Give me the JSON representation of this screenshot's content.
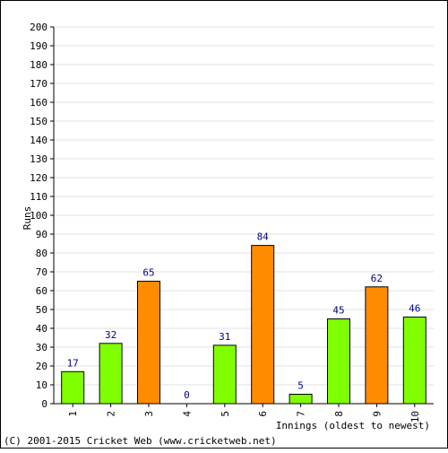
{
  "chart_data": {
    "type": "bar",
    "ylabel": "Runs",
    "xlabel": "Innings (oldest to newest)",
    "ylim": [
      0,
      200
    ],
    "y_ticks": [
      "0",
      "10",
      "20",
      "30",
      "40",
      "50",
      "60",
      "70",
      "80",
      "90",
      "100",
      "110",
      "120",
      "130",
      "140",
      "150",
      "160",
      "170",
      "180",
      "190",
      "200"
    ],
    "categories": [
      "1",
      "2",
      "3",
      "4",
      "5",
      "6",
      "7",
      "8",
      "9",
      "10"
    ],
    "values": [
      17,
      32,
      65,
      0,
      31,
      84,
      5,
      45,
      62,
      46
    ],
    "value_labels": [
      "17",
      "32",
      "65",
      "0",
      "31",
      "84",
      "5",
      "45",
      "62",
      "46"
    ],
    "bar_highlight": [
      false,
      false,
      true,
      false,
      false,
      true,
      false,
      false,
      true,
      false
    ],
    "grid": true,
    "colors": {
      "bar_normal": "#80ff00",
      "bar_highlight": "#ff8c00",
      "value_label": "#000080",
      "grid": "#e0e0e0",
      "axis": "#000000",
      "frame": "#000000"
    }
  },
  "footer": {
    "copyright": "(C) 2001-2015 Cricket Web (www.cricketweb.net)"
  }
}
